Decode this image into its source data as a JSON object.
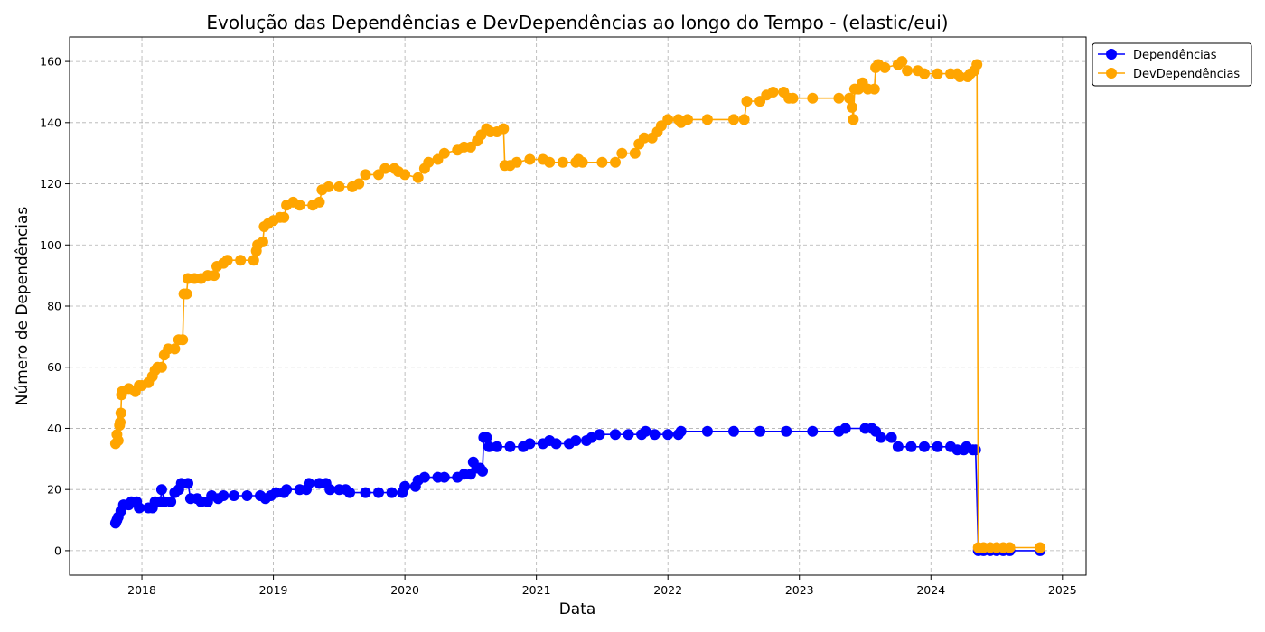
{
  "chart_data": {
    "type": "line",
    "title": "Evolução das Dependências e DevDependências ao longo do Tempo - (elastic/eui)",
    "xlabel": "Data",
    "ylabel": "Número de Dependências",
    "x_ticks": [
      "2018",
      "2019",
      "2020",
      "2021",
      "2022",
      "2023",
      "2024",
      "2025"
    ],
    "y_ticks": [
      0,
      20,
      40,
      60,
      80,
      100,
      120,
      140,
      160
    ],
    "xlim": [
      2017.45,
      2025.18
    ],
    "ylim": [
      -8,
      168
    ],
    "grid": true,
    "legend_position": "top-right outside",
    "series": [
      {
        "name": "Dependências",
        "color": "#0000ff",
        "points": [
          [
            2017.8,
            9
          ],
          [
            2017.81,
            10
          ],
          [
            2017.82,
            11
          ],
          [
            2017.84,
            13
          ],
          [
            2017.86,
            15
          ],
          [
            2017.9,
            15
          ],
          [
            2017.92,
            16
          ],
          [
            2017.96,
            16
          ],
          [
            2017.98,
            14
          ],
          [
            2018.05,
            14
          ],
          [
            2018.08,
            14
          ],
          [
            2018.1,
            16
          ],
          [
            2018.14,
            16
          ],
          [
            2018.15,
            20
          ],
          [
            2018.17,
            16
          ],
          [
            2018.22,
            16
          ],
          [
            2018.25,
            19
          ],
          [
            2018.28,
            20
          ],
          [
            2018.3,
            22
          ],
          [
            2018.35,
            22
          ],
          [
            2018.37,
            17
          ],
          [
            2018.42,
            17
          ],
          [
            2018.45,
            16
          ],
          [
            2018.5,
            16
          ],
          [
            2018.53,
            18
          ],
          [
            2018.58,
            17
          ],
          [
            2018.62,
            18
          ],
          [
            2018.7,
            18
          ],
          [
            2018.8,
            18
          ],
          [
            2018.9,
            18
          ],
          [
            2018.94,
            17
          ],
          [
            2018.98,
            18
          ],
          [
            2019.02,
            19
          ],
          [
            2019.08,
            19
          ],
          [
            2019.1,
            20
          ],
          [
            2019.2,
            20
          ],
          [
            2019.25,
            20
          ],
          [
            2019.27,
            22
          ],
          [
            2019.35,
            22
          ],
          [
            2019.4,
            22
          ],
          [
            2019.43,
            20
          ],
          [
            2019.5,
            20
          ],
          [
            2019.55,
            20
          ],
          [
            2019.58,
            19
          ],
          [
            2019.7,
            19
          ],
          [
            2019.8,
            19
          ],
          [
            2019.9,
            19
          ],
          [
            2019.98,
            19
          ],
          [
            2020.0,
            21
          ],
          [
            2020.08,
            21
          ],
          [
            2020.1,
            23
          ],
          [
            2020.15,
            24
          ],
          [
            2020.25,
            24
          ],
          [
            2020.3,
            24
          ],
          [
            2020.4,
            24
          ],
          [
            2020.45,
            25
          ],
          [
            2020.5,
            25
          ],
          [
            2020.52,
            29
          ],
          [
            2020.55,
            27
          ],
          [
            2020.57,
            27
          ],
          [
            2020.59,
            26
          ],
          [
            2020.6,
            37
          ],
          [
            2020.62,
            37
          ],
          [
            2020.64,
            34
          ],
          [
            2020.7,
            34
          ],
          [
            2020.8,
            34
          ],
          [
            2020.9,
            34
          ],
          [
            2020.95,
            35
          ],
          [
            2021.05,
            35
          ],
          [
            2021.1,
            36
          ],
          [
            2021.15,
            35
          ],
          [
            2021.25,
            35
          ],
          [
            2021.3,
            36
          ],
          [
            2021.38,
            36
          ],
          [
            2021.42,
            37
          ],
          [
            2021.48,
            38
          ],
          [
            2021.6,
            38
          ],
          [
            2021.7,
            38
          ],
          [
            2021.8,
            38
          ],
          [
            2021.83,
            39
          ],
          [
            2021.9,
            38
          ],
          [
            2022.0,
            38
          ],
          [
            2022.08,
            38
          ],
          [
            2022.1,
            39
          ],
          [
            2022.3,
            39
          ],
          [
            2022.5,
            39
          ],
          [
            2022.7,
            39
          ],
          [
            2022.9,
            39
          ],
          [
            2023.1,
            39
          ],
          [
            2023.3,
            39
          ],
          [
            2023.35,
            40
          ],
          [
            2023.5,
            40
          ],
          [
            2023.55,
            40
          ],
          [
            2023.58,
            39
          ],
          [
            2023.62,
            37
          ],
          [
            2023.7,
            37
          ],
          [
            2023.75,
            34
          ],
          [
            2023.85,
            34
          ],
          [
            2023.95,
            34
          ],
          [
            2024.05,
            34
          ],
          [
            2024.15,
            34
          ],
          [
            2024.2,
            33
          ],
          [
            2024.25,
            33
          ],
          [
            2024.27,
            34
          ],
          [
            2024.32,
            33
          ],
          [
            2024.34,
            33
          ],
          [
            2024.36,
            0
          ],
          [
            2024.4,
            0
          ],
          [
            2024.45,
            0
          ],
          [
            2024.5,
            0
          ],
          [
            2024.55,
            0
          ],
          [
            2024.6,
            0
          ],
          [
            2024.83,
            0
          ]
        ]
      },
      {
        "name": "DevDependências",
        "color": "#ffa500",
        "points": [
          [
            2017.8,
            35
          ],
          [
            2017.81,
            38
          ],
          [
            2017.82,
            36
          ],
          [
            2017.83,
            41
          ],
          [
            2017.835,
            42
          ],
          [
            2017.84,
            45
          ],
          [
            2017.845,
            51
          ],
          [
            2017.85,
            52
          ],
          [
            2017.9,
            53
          ],
          [
            2017.95,
            52
          ],
          [
            2017.98,
            54
          ],
          [
            2018.0,
            54
          ],
          [
            2018.05,
            55
          ],
          [
            2018.08,
            57
          ],
          [
            2018.1,
            59
          ],
          [
            2018.12,
            60
          ],
          [
            2018.15,
            60
          ],
          [
            2018.17,
            64
          ],
          [
            2018.2,
            66
          ],
          [
            2018.25,
            66
          ],
          [
            2018.28,
            69
          ],
          [
            2018.31,
            69
          ],
          [
            2018.32,
            84
          ],
          [
            2018.34,
            84
          ],
          [
            2018.35,
            89
          ],
          [
            2018.4,
            89
          ],
          [
            2018.45,
            89
          ],
          [
            2018.5,
            90
          ],
          [
            2018.55,
            90
          ],
          [
            2018.57,
            93
          ],
          [
            2018.62,
            94
          ],
          [
            2018.65,
            95
          ],
          [
            2018.75,
            95
          ],
          [
            2018.85,
            95
          ],
          [
            2018.87,
            98
          ],
          [
            2018.88,
            100
          ],
          [
            2018.92,
            101
          ],
          [
            2018.93,
            106
          ],
          [
            2018.96,
            107
          ],
          [
            2019.0,
            108
          ],
          [
            2019.05,
            109
          ],
          [
            2019.08,
            109
          ],
          [
            2019.1,
            113
          ],
          [
            2019.15,
            114
          ],
          [
            2019.2,
            113
          ],
          [
            2019.3,
            113
          ],
          [
            2019.35,
            114
          ],
          [
            2019.37,
            118
          ],
          [
            2019.42,
            119
          ],
          [
            2019.5,
            119
          ],
          [
            2019.6,
            119
          ],
          [
            2019.65,
            120
          ],
          [
            2019.7,
            123
          ],
          [
            2019.8,
            123
          ],
          [
            2019.85,
            125
          ],
          [
            2019.92,
            125
          ],
          [
            2019.95,
            124
          ],
          [
            2020.0,
            123
          ],
          [
            2020.1,
            122
          ],
          [
            2020.15,
            125
          ],
          [
            2020.18,
            127
          ],
          [
            2020.25,
            128
          ],
          [
            2020.3,
            130
          ],
          [
            2020.4,
            131
          ],
          [
            2020.45,
            132
          ],
          [
            2020.5,
            132
          ],
          [
            2020.55,
            134
          ],
          [
            2020.58,
            136
          ],
          [
            2020.62,
            138
          ],
          [
            2020.65,
            137
          ],
          [
            2020.7,
            137
          ],
          [
            2020.75,
            138
          ],
          [
            2020.76,
            126
          ],
          [
            2020.8,
            126
          ],
          [
            2020.85,
            127
          ],
          [
            2020.95,
            128
          ],
          [
            2021.05,
            128
          ],
          [
            2021.1,
            127
          ],
          [
            2021.2,
            127
          ],
          [
            2021.3,
            127
          ],
          [
            2021.32,
            128
          ],
          [
            2021.35,
            127
          ],
          [
            2021.5,
            127
          ],
          [
            2021.6,
            127
          ],
          [
            2021.65,
            130
          ],
          [
            2021.75,
            130
          ],
          [
            2021.78,
            133
          ],
          [
            2021.82,
            135
          ],
          [
            2021.88,
            135
          ],
          [
            2021.92,
            137
          ],
          [
            2021.95,
            139
          ],
          [
            2022.0,
            141
          ],
          [
            2022.08,
            141
          ],
          [
            2022.1,
            140
          ],
          [
            2022.15,
            141
          ],
          [
            2022.3,
            141
          ],
          [
            2022.5,
            141
          ],
          [
            2022.58,
            141
          ],
          [
            2022.6,
            147
          ],
          [
            2022.7,
            147
          ],
          [
            2022.75,
            149
          ],
          [
            2022.8,
            150
          ],
          [
            2022.88,
            150
          ],
          [
            2022.92,
            148
          ],
          [
            2022.95,
            148
          ],
          [
            2023.1,
            148
          ],
          [
            2023.3,
            148
          ],
          [
            2023.38,
            148
          ],
          [
            2023.4,
            145
          ],
          [
            2023.41,
            141
          ],
          [
            2023.42,
            151
          ],
          [
            2023.45,
            151
          ],
          [
            2023.48,
            153
          ],
          [
            2023.52,
            151
          ],
          [
            2023.57,
            151
          ],
          [
            2023.58,
            158
          ],
          [
            2023.6,
            159
          ],
          [
            2023.65,
            158
          ],
          [
            2023.75,
            159
          ],
          [
            2023.78,
            160
          ],
          [
            2023.82,
            157
          ],
          [
            2023.9,
            157
          ],
          [
            2023.95,
            156
          ],
          [
            2024.05,
            156
          ],
          [
            2024.15,
            156
          ],
          [
            2024.2,
            156
          ],
          [
            2024.22,
            155
          ],
          [
            2024.28,
            155
          ],
          [
            2024.3,
            156
          ],
          [
            2024.33,
            157
          ],
          [
            2024.35,
            159
          ],
          [
            2024.36,
            1
          ],
          [
            2024.4,
            1
          ],
          [
            2024.45,
            1
          ],
          [
            2024.5,
            1
          ],
          [
            2024.55,
            1
          ],
          [
            2024.6,
            1
          ],
          [
            2024.83,
            1
          ]
        ]
      }
    ]
  }
}
